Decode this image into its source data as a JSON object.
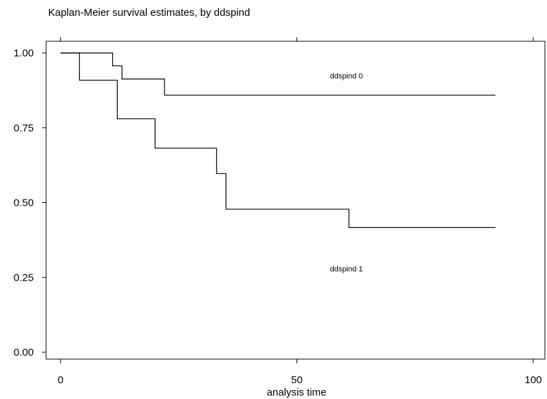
{
  "chart_data": {
    "type": "line",
    "step": true,
    "title": "Kaplan-Meier survival estimates, by ddspind",
    "xlabel": "analysis time",
    "ylabel": "",
    "xlim": [
      0,
      100
    ],
    "ylim": [
      0,
      1
    ],
    "xticks": [
      0,
      50,
      100
    ],
    "xtick_labels": [
      "0",
      "50",
      "100"
    ],
    "yticks": [
      0,
      0.25,
      0.5,
      0.75,
      1
    ],
    "ytick_labels": [
      "0.00",
      "0.25",
      "0.50",
      "0.75",
      "1.00"
    ],
    "grid": false,
    "legend": "none",
    "series": [
      {
        "name": "ddspind 0",
        "x": [
          0,
          11,
          13,
          22,
          92
        ],
        "y": [
          1.0,
          0.957,
          0.913,
          0.859,
          0.859
        ]
      },
      {
        "name": "ddspind 1",
        "x": [
          0,
          4,
          12,
          20,
          33,
          35,
          61,
          92
        ],
        "y": [
          1.0,
          0.909,
          0.78,
          0.682,
          0.597,
          0.478,
          0.417,
          0.417
        ]
      }
    ],
    "annotations": [
      {
        "text": "ddspind 0",
        "x": 57,
        "y": 0.915
      },
      {
        "text": "ddspind 1",
        "x": 57,
        "y": 0.27
      }
    ]
  }
}
